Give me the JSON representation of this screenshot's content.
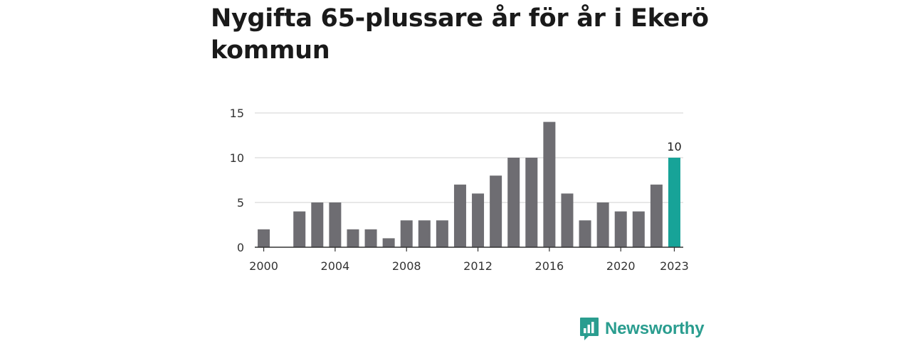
{
  "title": "Nygifta 65-plussare år för år i Ekerö kommun",
  "brand": {
    "name": "Newsworthy",
    "color": "#2a9d8f"
  },
  "colors": {
    "bar": "#6e6d72",
    "highlight": "#17a398",
    "grid": "#d9d9d9",
    "axis": "#333333"
  },
  "chart_data": {
    "type": "bar",
    "title": "Nygifta 65-plussare år för år i Ekerö kommun",
    "xlabel": "",
    "ylabel": "",
    "categories": [
      2000,
      2001,
      2002,
      2003,
      2004,
      2005,
      2006,
      2007,
      2008,
      2009,
      2010,
      2011,
      2012,
      2013,
      2014,
      2015,
      2016,
      2017,
      2018,
      2019,
      2020,
      2021,
      2022,
      2023
    ],
    "values": [
      2,
      0,
      4,
      5,
      5,
      2,
      2,
      1,
      3,
      3,
      3,
      7,
      6,
      8,
      10,
      10,
      14,
      6,
      3,
      5,
      4,
      4,
      7,
      10
    ],
    "highlight_index": 23,
    "highlight_label": "10",
    "ylim": [
      0,
      15
    ],
    "yticks": [
      "0",
      "5",
      "10",
      "15"
    ],
    "xticks": [
      "2000",
      "2004",
      "2008",
      "2012",
      "2016",
      "2020",
      "2023"
    ],
    "grid": true
  }
}
